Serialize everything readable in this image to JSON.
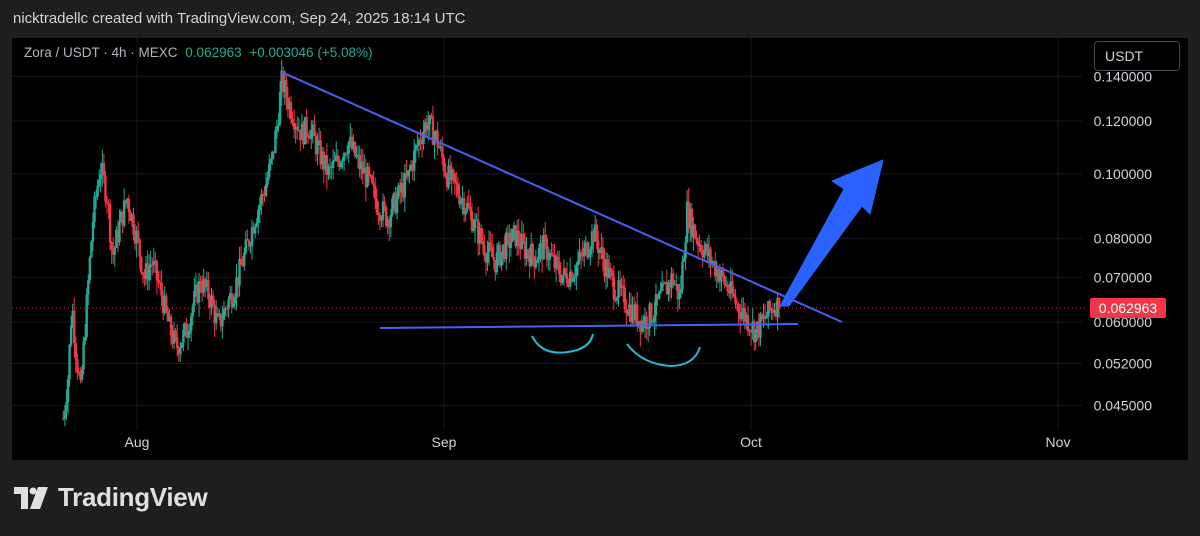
{
  "header": {
    "created_by": "nicktradellc created with TradingView.com, Sep 24, 2025 18:14 UTC"
  },
  "legend": {
    "symbol": "Zora / USDT · 4h · MEXC",
    "price": "0.062963",
    "change": "+0.003046 (+5.08%)"
  },
  "currency_button": "USDT",
  "current_price_badge": "0.062963",
  "footer": {
    "brand": "TradingView"
  },
  "colors": {
    "up": "#22ab94",
    "down": "#f23645",
    "trendline": "#4a61f0",
    "arrow": "#2962ff",
    "pattern_arcs": "#28b8d4",
    "price_line": "#f23645"
  },
  "chart_data": {
    "type": "candlestick",
    "y_scale": "log",
    "y_ticks": [
      "0.140000",
      "0.120000",
      "0.100000",
      "0.080000",
      "0.070000",
      "0.060000",
      "0.052000",
      "0.045000"
    ],
    "x_ticks": [
      "Aug",
      "Sep",
      "Oct",
      "Nov"
    ],
    "last_price": 0.062963,
    "series_close": [
      [
        0.0,
        0.043
      ],
      [
        0.2,
        0.05
      ],
      [
        0.35,
        0.064
      ],
      [
        0.5,
        0.055
      ],
      [
        0.7,
        0.047
      ],
      [
        0.9,
        0.06
      ],
      [
        1.2,
        0.085
      ],
      [
        1.5,
        0.103
      ],
      [
        1.8,
        0.092
      ],
      [
        2.0,
        0.075
      ],
      [
        2.3,
        0.084
      ],
      [
        2.6,
        0.092
      ],
      [
        3.0,
        0.08
      ],
      [
        3.3,
        0.07
      ],
      [
        3.6,
        0.074
      ],
      [
        4.0,
        0.066
      ],
      [
        4.3,
        0.059
      ],
      [
        4.6,
        0.055
      ],
      [
        5.0,
        0.058
      ],
      [
        5.3,
        0.064
      ],
      [
        5.6,
        0.069
      ],
      [
        6.0,
        0.065
      ],
      [
        6.3,
        0.059
      ],
      [
        6.6,
        0.063
      ],
      [
        7.0,
        0.068
      ],
      [
        7.4,
        0.076
      ],
      [
        7.8,
        0.086
      ],
      [
        8.2,
        0.095
      ],
      [
        8.5,
        0.105
      ],
      [
        8.7,
        0.118
      ],
      [
        8.9,
        0.138
      ],
      [
        9.1,
        0.13
      ],
      [
        9.4,
        0.122
      ],
      [
        9.7,
        0.115
      ],
      [
        10.0,
        0.118
      ],
      [
        10.4,
        0.108
      ],
      [
        10.8,
        0.1
      ],
      [
        11.2,
        0.105
      ],
      [
        11.6,
        0.112
      ],
      [
        12.0,
        0.104
      ],
      [
        12.4,
        0.098
      ],
      [
        12.8,
        0.09
      ],
      [
        13.2,
        0.086
      ],
      [
        13.6,
        0.092
      ],
      [
        14.0,
        0.098
      ],
      [
        14.4,
        0.11
      ],
      [
        14.8,
        0.12
      ],
      [
        15.2,
        0.113
      ],
      [
        15.6,
        0.1
      ],
      [
        16.0,
        0.095
      ],
      [
        16.4,
        0.09
      ],
      [
        16.8,
        0.083
      ],
      [
        17.2,
        0.077
      ],
      [
        17.6,
        0.074
      ],
      [
        18.0,
        0.078
      ],
      [
        18.4,
        0.081
      ],
      [
        18.8,
        0.077
      ],
      [
        19.2,
        0.075
      ],
      [
        19.6,
        0.078
      ],
      [
        20.0,
        0.073
      ],
      [
        20.4,
        0.07
      ],
      [
        20.8,
        0.072
      ],
      [
        21.2,
        0.076
      ],
      [
        21.6,
        0.082
      ],
      [
        22.0,
        0.074
      ],
      [
        22.4,
        0.068
      ],
      [
        22.8,
        0.065
      ],
      [
        23.2,
        0.062
      ],
      [
        23.6,
        0.06
      ],
      [
        24.0,
        0.062
      ],
      [
        24.4,
        0.066
      ],
      [
        24.8,
        0.07
      ],
      [
        25.1,
        0.065
      ],
      [
        25.4,
        0.088
      ],
      [
        25.8,
        0.08
      ],
      [
        26.2,
        0.076
      ],
      [
        26.6,
        0.072
      ],
      [
        27.0,
        0.068
      ],
      [
        27.4,
        0.064
      ],
      [
        27.8,
        0.061
      ],
      [
        28.2,
        0.058
      ],
      [
        28.6,
        0.061
      ],
      [
        29.0,
        0.064
      ],
      [
        29.2,
        0.063
      ]
    ],
    "annotations": {
      "descending_trendline": [
        [
          8.9,
          0.142
        ],
        [
          31.7,
          0.06
        ]
      ],
      "support_line": [
        [
          14.0,
          0.0588
        ],
        [
          32.5,
          0.06
        ]
      ],
      "arcs": 2,
      "arrow_up": "target above 0.100000"
    }
  }
}
